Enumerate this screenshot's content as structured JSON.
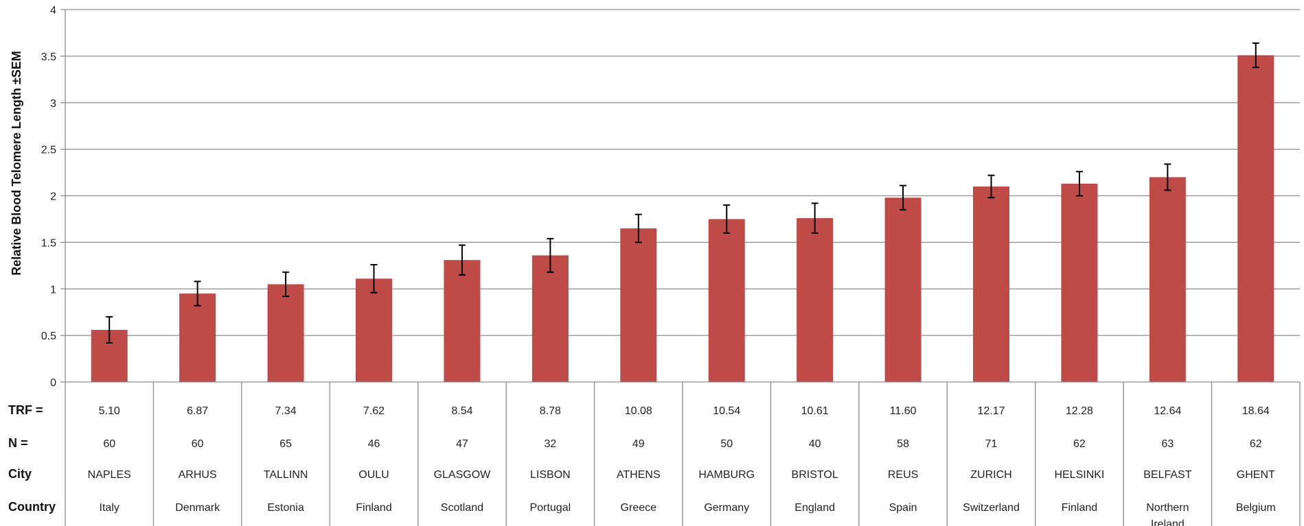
{
  "chart_data": {
    "type": "bar",
    "ylabel": "Relative Blood Telomere Length ±SEM",
    "ylim": [
      0,
      4
    ],
    "yticks": [
      "0",
      "0.5",
      "1",
      "1.5",
      "2",
      "2.5",
      "3",
      "3.5",
      "4"
    ],
    "grid": true,
    "bar_color": "#be4b48",
    "categories": [
      "NAPLES",
      "ARHUS",
      "TALLINN",
      "OULU",
      "GLASGOW",
      "LISBON",
      "ATHENS",
      "HAMBURG",
      "BRISTOL",
      "REUS",
      "ZURICH",
      "HELSINKI",
      "BELFAST",
      "GHENT"
    ],
    "values": [
      0.56,
      0.95,
      1.05,
      1.11,
      1.31,
      1.36,
      1.65,
      1.75,
      1.76,
      1.98,
      2.1,
      2.13,
      2.2,
      3.51
    ],
    "errors": [
      0.14,
      0.13,
      0.13,
      0.15,
      0.16,
      0.18,
      0.15,
      0.15,
      0.16,
      0.13,
      0.12,
      0.13,
      0.14,
      0.13
    ],
    "table_rows": [
      {
        "label": "TRF  =",
        "values": [
          "5.10",
          "6.87",
          "7.34",
          "7.62",
          "8.54",
          "8.78",
          "10.08",
          "10.54",
          "10.61",
          "11.60",
          "12.17",
          "12.28",
          "12.64",
          "18.64"
        ]
      },
      {
        "label": "N =",
        "values": [
          "60",
          "60",
          "65",
          "46",
          "47",
          "32",
          "49",
          "50",
          "40",
          "58",
          "71",
          "62",
          "63",
          "62"
        ]
      },
      {
        "label": "City",
        "values": [
          "NAPLES",
          "ARHUS",
          "TALLINN",
          "OULU",
          "GLASGOW",
          "LISBON",
          "ATHENS",
          "HAMBURG",
          "BRISTOL",
          "REUS",
          "ZURICH",
          "HELSINKI",
          "BELFAST",
          "GHENT"
        ]
      },
      {
        "label": "Country",
        "values": [
          "Italy",
          "Denmark",
          "Estonia",
          "Finland",
          "Scotland",
          "Portugal",
          "Greece",
          "Germany",
          "England",
          "Spain",
          "Switzerland",
          "Finland",
          "Northern Ireland",
          "Belgium"
        ]
      }
    ]
  }
}
